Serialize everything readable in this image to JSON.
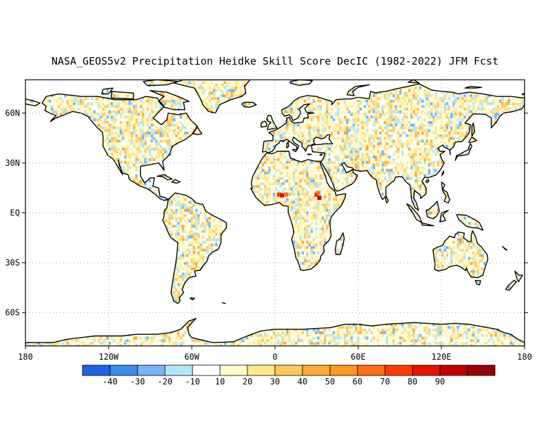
{
  "title": "NASA_GEOS5v2 Precipitation Heidke Skill Score DecIC (1982-2022) JFM Fcst",
  "map": {
    "lon_range": [
      -180,
      180
    ],
    "lat_range": [
      -80,
      80
    ],
    "grid": "dotted",
    "lon_ticks": [
      {
        "value": -180,
        "label": "180"
      },
      {
        "value": -120,
        "label": "120W"
      },
      {
        "value": -60,
        "label": "60W"
      },
      {
        "value": 0,
        "label": "0"
      },
      {
        "value": 60,
        "label": "60E"
      },
      {
        "value": 120,
        "label": "120E"
      },
      {
        "value": 180,
        "label": "180"
      }
    ],
    "lat_ticks": [
      {
        "value": 60,
        "label": "60N"
      },
      {
        "value": 30,
        "label": "30N"
      },
      {
        "value": 0,
        "label": "EQ"
      },
      {
        "value": -30,
        "label": "30S"
      },
      {
        "value": -60,
        "label": "60S"
      }
    ]
  },
  "colorbar": {
    "colors": [
      "#1e64e6",
      "#3c8cf0",
      "#78b4f8",
      "#b4e6fa",
      "#ffffff",
      "#fffac8",
      "#ffe68c",
      "#ffc85a",
      "#ffaa32",
      "#ff961e",
      "#ff6e14",
      "#ff3c00",
      "#e61400",
      "#c00000",
      "#960000"
    ],
    "labels": [
      "-40",
      "-30",
      "-20",
      "-10",
      "10",
      "20",
      "30",
      "40",
      "50",
      "60",
      "70",
      "80",
      "90"
    ]
  },
  "features": {
    "hotspots": [
      {
        "lon": 3,
        "lat": 11,
        "level": 11
      },
      {
        "lon": 5,
        "lat": 10.5,
        "level": 12
      },
      {
        "lon": 8,
        "lat": 11,
        "level": 10
      },
      {
        "lon": 30,
        "lat": 11,
        "level": 12
      },
      {
        "lon": 32,
        "lat": 9,
        "level": 13
      },
      {
        "lon": 31,
        "lat": 12,
        "level": 10
      }
    ]
  }
}
